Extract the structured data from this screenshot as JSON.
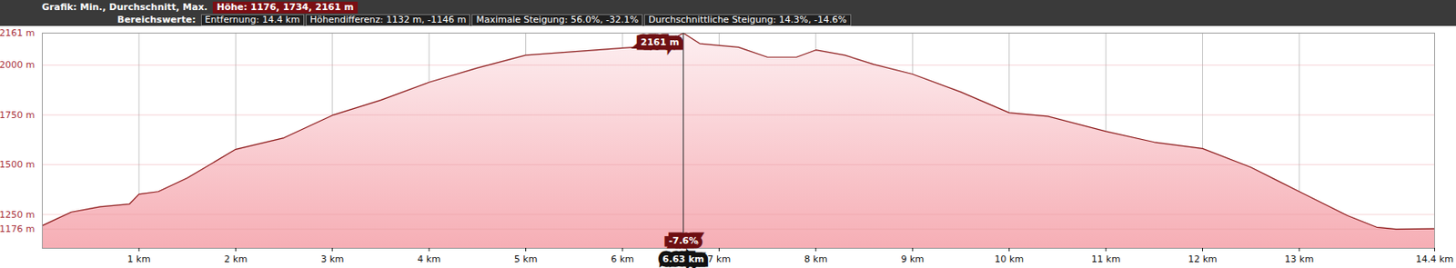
{
  "chart_data": {
    "type": "area",
    "title": "Grafik: Min., Durchschnitt, Max.",
    "title_value": "Höhe: 1176, 1734, 2161 m",
    "subtitle": "Bereichswerte:",
    "subtitle_values": [
      "Entfernung: 14.4 km",
      "Höhendifferenz: 1132 m, -1146 m",
      "Maximale Steigung: 56.0%, -32.1%",
      "Durchschnittliche Steigung: 14.3%, -14.6%"
    ],
    "x": [
      0,
      0.3,
      0.6,
      0.9,
      1.0,
      1.2,
      1.5,
      2.0,
      2.5,
      3.0,
      3.5,
      4.0,
      4.5,
      5.0,
      5.5,
      6.0,
      6.4,
      6.63,
      6.8,
      7.2,
      7.5,
      7.8,
      8.0,
      8.3,
      8.6,
      9.0,
      9.5,
      10.0,
      10.4,
      11.0,
      11.5,
      12.0,
      12.5,
      13.0,
      13.5,
      13.8,
      14.0,
      14.4
    ],
    "values": [
      1194,
      1262,
      1289,
      1302,
      1352,
      1365,
      1433,
      1577,
      1635,
      1748,
      1824,
      1914,
      1986,
      2050,
      2068,
      2086,
      2099,
      2161,
      2108,
      2090,
      2040,
      2040,
      2076,
      2050,
      2004,
      1955,
      1865,
      1761,
      1743,
      1667,
      1613,
      1581,
      1487,
      1365,
      1244,
      1186,
      1176,
      1178
    ],
    "color": "#8b1a1a",
    "xlim": [
      0,
      14.4
    ],
    "xticks": [
      {
        "value": 1,
        "label": "1 km"
      },
      {
        "value": 2,
        "label": "2 km"
      },
      {
        "value": 3,
        "label": "3 km"
      },
      {
        "value": 4,
        "label": "4 km"
      },
      {
        "value": 5,
        "label": "5 km"
      },
      {
        "value": 6,
        "label": "6 km"
      },
      {
        "value": 7,
        "label": "7 km"
      },
      {
        "value": 8,
        "label": "8 km"
      },
      {
        "value": 9,
        "label": "9 km"
      },
      {
        "value": 10,
        "label": "10 km"
      },
      {
        "value": 11,
        "label": "11 km"
      },
      {
        "value": 12,
        "label": "12 km"
      },
      {
        "value": 13,
        "label": "13 km"
      },
      {
        "value": 14.4,
        "label": "14.4 km"
      }
    ],
    "ylim": [
      1080,
      2161
    ],
    "yticks": [
      {
        "value": 1176,
        "label": "1176 m"
      },
      {
        "value": 1250,
        "label": "1250 m"
      },
      {
        "value": 1500,
        "label": "1500 m"
      },
      {
        "value": 1750,
        "label": "1750 m"
      },
      {
        "value": 2000,
        "label": "2000 m"
      },
      {
        "value": 2161,
        "label": "2161 m"
      }
    ],
    "grid": true,
    "cursor": {
      "x": 6.63,
      "y": 2161,
      "x_label": "6.63 km",
      "y_label": "2161 m",
      "slope_label": "-7.6%"
    }
  }
}
